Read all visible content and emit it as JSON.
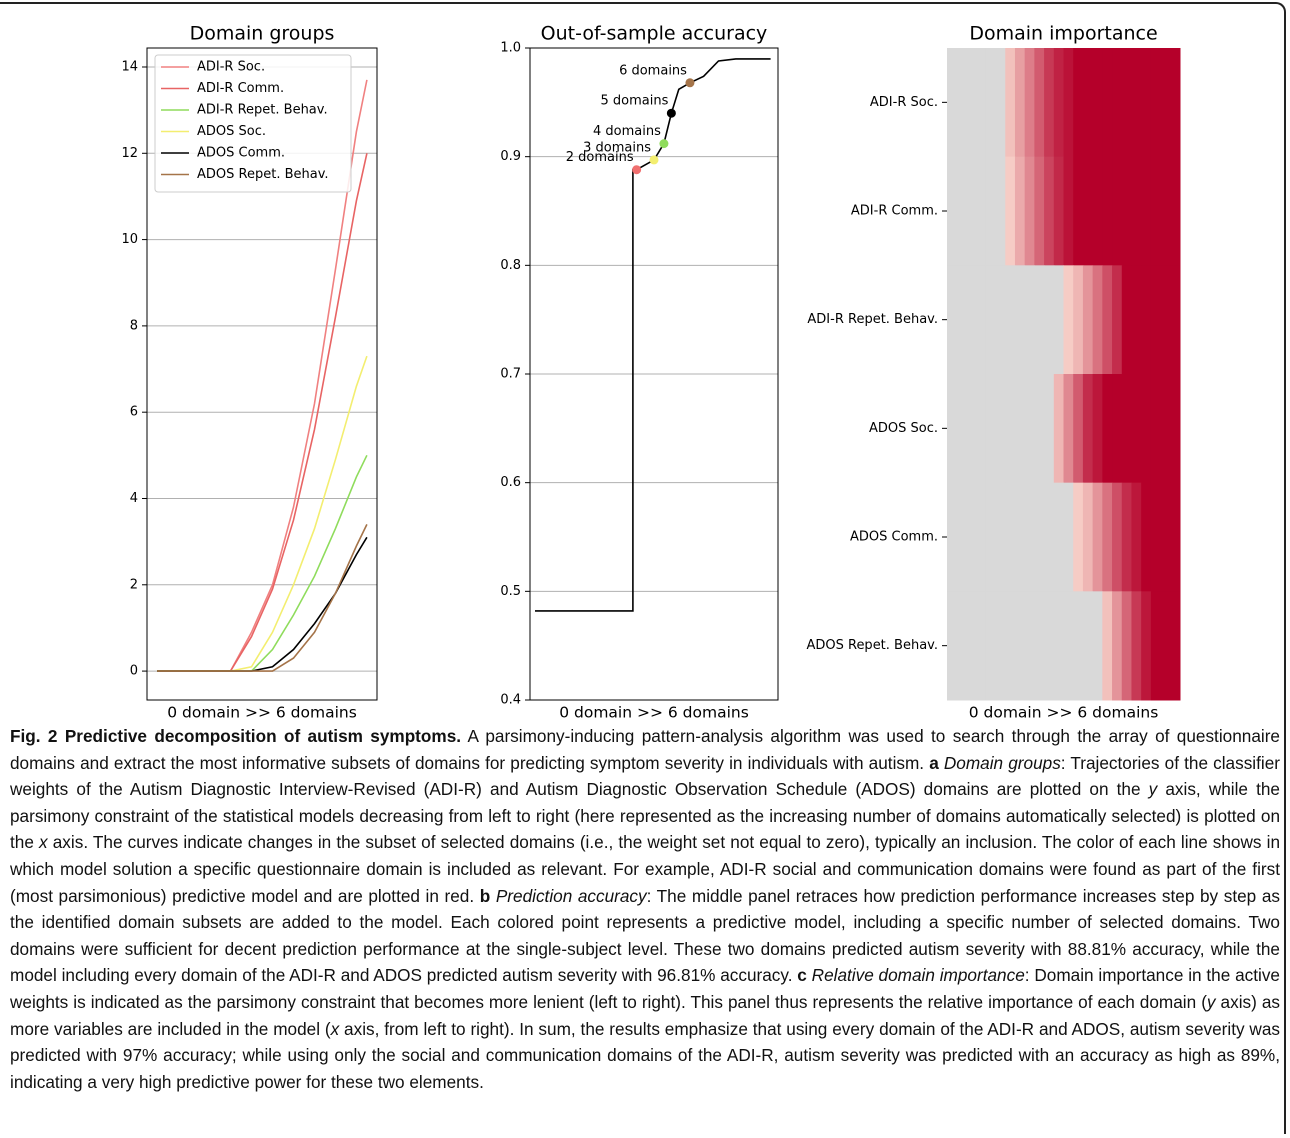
{
  "chart_data": [
    {
      "type": "line",
      "title": "Domain groups",
      "xlabel": "0 domain >> 6 domains",
      "xlim": [
        -0.048,
        1.048
      ],
      "ylim": [
        -0.67,
        14.44
      ],
      "yticks": [
        0,
        2,
        4,
        6,
        8,
        10,
        12,
        14
      ],
      "grid": true,
      "legend": "upper left",
      "x": [
        0,
        0.35,
        0.45,
        0.55,
        0.65,
        0.75,
        0.85,
        0.95,
        1.0
      ],
      "series": [
        {
          "name": "ADI-R Soc.",
          "color": "#f08080",
          "values": [
            0,
            0,
            0.9,
            2.0,
            3.8,
            6.2,
            9.3,
            12.5,
            13.7
          ]
        },
        {
          "name": "ADI-R Comm.",
          "color": "#e86464",
          "values": [
            0,
            0,
            0.8,
            1.9,
            3.5,
            5.6,
            8.2,
            10.9,
            12.0
          ]
        },
        {
          "name": "ADI-R Repet. Behav.",
          "color": "#8fdc5c",
          "values": [
            0,
            0,
            0,
            0.5,
            1.3,
            2.2,
            3.3,
            4.5,
            5.0
          ]
        },
        {
          "name": "ADOS Soc.",
          "color": "#f3ee70",
          "values": [
            0,
            0,
            0.1,
            0.9,
            2.0,
            3.3,
            4.9,
            6.6,
            7.3
          ]
        },
        {
          "name": "ADOS Comm.",
          "color": "#000000",
          "values": [
            0,
            0,
            0,
            0.1,
            0.5,
            1.1,
            1.8,
            2.7,
            3.1
          ]
        },
        {
          "name": "ADOS Repet. Behav.",
          "color": "#a57449",
          "values": [
            0,
            0,
            0,
            0,
            0.3,
            0.9,
            1.8,
            2.9,
            3.4
          ]
        }
      ]
    },
    {
      "type": "line",
      "title": "Out-of-sample accuracy",
      "xlabel": "0 domain >> 6 domains",
      "xlim": [
        0,
        1
      ],
      "ylim": [
        0.4,
        1.0
      ],
      "yticks": [
        0.4,
        0.5,
        0.6,
        0.7,
        0.8,
        0.9,
        {
          "value": 1.0,
          "label": "1.0"
        }
      ],
      "grid": true,
      "x": [
        0.02,
        0.39,
        0.415,
        0.415,
        0.43,
        0.5,
        0.54,
        0.57,
        0.6,
        0.645,
        0.7,
        0.76,
        0.83,
        0.97
      ],
      "series": [
        {
          "color": "#000000",
          "values": [
            0.482,
            0.482,
            0.482,
            0.888,
            0.888,
            0.897,
            0.912,
            0.94,
            0.962,
            0.968,
            0.974,
            0.988,
            0.99,
            0.99
          ]
        }
      ],
      "points": {
        "labels": [
          "2 domains",
          "3 domains",
          "4 domains",
          "5 domains",
          "6 domains"
        ],
        "x": [
          0.43,
          0.5,
          0.54,
          0.57,
          0.645
        ],
        "values": [
          0.888,
          0.897,
          0.912,
          0.94,
          0.968
        ],
        "colors": [
          "#f07070",
          "#f3ee70",
          "#8fdc5c",
          "#000000",
          "#a57449"
        ]
      }
    },
    {
      "type": "heatmap",
      "title": "Domain importance",
      "xlabel": "0 domain >> 6 domains",
      "categories": [
        "ADI-R Soc.",
        "ADI-R Comm.",
        "ADI-R Repet. Behav.",
        "ADOS Soc.",
        "ADOS Comm.",
        "ADOS Repet. Behav."
      ],
      "zero_color": "#d9d9d9",
      "colormap": [
        "#fde3d6",
        "#b5002a"
      ],
      "values": [
        [
          0,
          0,
          0,
          0,
          0,
          0,
          0.15,
          0.3,
          0.45,
          0.6,
          0.75,
          0.85,
          0.92,
          1,
          1,
          1,
          1,
          1,
          1,
          1,
          1,
          1,
          1,
          1
        ],
        [
          0,
          0,
          0,
          0,
          0,
          0,
          0.1,
          0.25,
          0.4,
          0.55,
          0.7,
          0.82,
          0.92,
          1,
          1,
          1,
          1,
          1,
          1,
          1,
          1,
          1,
          1,
          1
        ],
        [
          0,
          0,
          0,
          0,
          0,
          0,
          0,
          0,
          0,
          0,
          0,
          0,
          0.1,
          0.2,
          0.35,
          0.5,
          0.65,
          0.8,
          1,
          1,
          1,
          1,
          1,
          1
        ],
        [
          0,
          0,
          0,
          0,
          0,
          0,
          0,
          0,
          0,
          0,
          0,
          0.2,
          0.4,
          0.6,
          0.8,
          0.9,
          1,
          1,
          1,
          1,
          1,
          1,
          1,
          1
        ],
        [
          0,
          0,
          0,
          0,
          0,
          0,
          0,
          0,
          0,
          0,
          0,
          0,
          0,
          0.1,
          0.2,
          0.35,
          0.5,
          0.65,
          0.8,
          0.9,
          1,
          1,
          1,
          1
        ],
        [
          0,
          0,
          0,
          0,
          0,
          0,
          0,
          0,
          0,
          0,
          0,
          0,
          0,
          0,
          0,
          0,
          0.15,
          0.35,
          0.55,
          0.75,
          0.9,
          1,
          1,
          1
        ]
      ]
    }
  ],
  "caption": {
    "segments": [
      {
        "text": "Fig. 2 Predictive decomposition of autism symptoms.",
        "style": "bold"
      },
      {
        "text": " A parsimony-inducing pattern-analysis algorithm was used to search through the array of questionnaire domains and extract the most informative subsets of domains for predicting symptom severity in individuals with autism. ",
        "style": "normal"
      },
      {
        "text": "a",
        "style": "bold"
      },
      {
        "text": " Domain groups",
        "style": "italic"
      },
      {
        "text": ": Trajectories of the classifier weights of the Autism Diagnostic Interview-Revised (ADI-R) and Autism Diagnostic Observation Schedule (ADOS) domains are plotted on the ",
        "style": "normal"
      },
      {
        "text": "y",
        "style": "italic"
      },
      {
        "text": " axis, while the parsimony constraint of the statistical models decreasing from left to right (here represented as the increasing number of domains automatically selected) is plotted on the ",
        "style": "normal"
      },
      {
        "text": "x",
        "style": "italic"
      },
      {
        "text": " axis. The curves indicate changes in the subset of selected domains (i.e., the weight set not equal to zero), typically an inclusion. The color of each line shows in which model solution a specific questionnaire domain is included as relevant. For example, ADI-R social and communication domains were found as part of the first (most parsimonious) predictive model and are plotted in red. ",
        "style": "normal"
      },
      {
        "text": "b",
        "style": "bold"
      },
      {
        "text": " Prediction accuracy",
        "style": "italic"
      },
      {
        "text": ": The middle panel retraces how prediction performance increases step by step as the identified domain subsets are added to the model. Each colored point represents a predictive model, including a specific number of selected domains. Two domains were sufficient for decent prediction performance at the single-subject level. These two domains predicted autism severity with 88.81% accuracy, while the model including every domain of the ADI-R and ADOS predicted autism severity with 96.81% accuracy. ",
        "style": "normal"
      },
      {
        "text": "c",
        "style": "bold"
      },
      {
        "text": " Relative domain importance",
        "style": "italic"
      },
      {
        "text": ": Domain importance in the active weights is indicated as the parsimony constraint that becomes more lenient (left to right). This panel thus represents the relative importance of each domain (",
        "style": "normal"
      },
      {
        "text": "y",
        "style": "italic"
      },
      {
        "text": " axis) as more variables are included in the model (",
        "style": "normal"
      },
      {
        "text": "x",
        "style": "italic"
      },
      {
        "text": " axis, from left to right). In sum, the results emphasize that using every domain of the ADI-R and ADOS, autism severity was predicted with 97% accuracy; while using only the social and communication domains of the ADI-R, autism severity was predicted with an accuracy as high as 89%, indicating a very high predictive power for these two elements.",
        "style": "normal"
      }
    ]
  }
}
